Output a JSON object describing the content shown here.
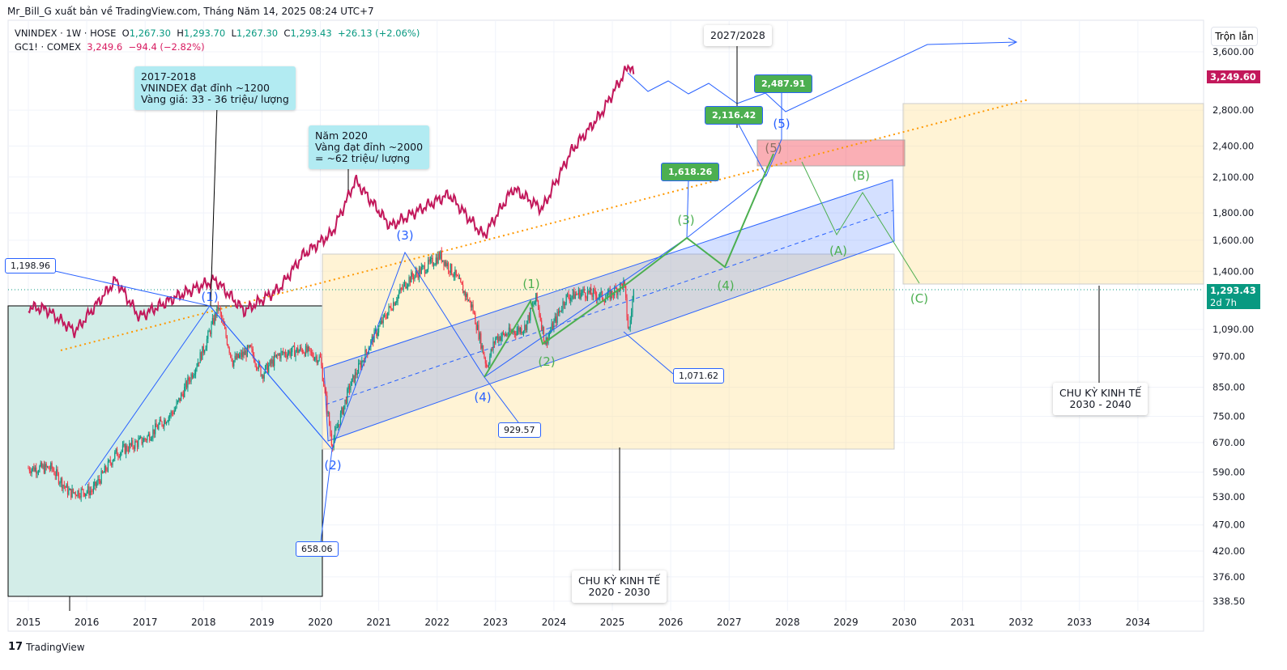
{
  "header": {
    "credit": "Mr_Bill_G xuất bản về TradingView.com, Tháng Năm 14, 2025 08:24 UTC+7"
  },
  "legend": {
    "symbol": "VNINDEX · 1W · HOSE",
    "o_label": "O",
    "o": "1,267.30",
    "h_label": "H",
    "h": "1,293.70",
    "l_label": "L",
    "l": "1,267.30",
    "c_label": "C",
    "c": "1,293.43",
    "change": "+26.13 (+2.06%)",
    "symbol2": "GC1! · COMEX",
    "price2": "3,249.6",
    "change2": "−94.4 (−2.82%)"
  },
  "scale_mode": "Trộn lẫn",
  "price_tags": {
    "gold": "3,249.60",
    "current": "1,293.43",
    "countdown": "2d 7h"
  },
  "notes": {
    "n2018": "2017-2018\nVNINDEX đạt đỉnh ~1200\nVàng giá: 33 - 36 triệu/ lượng",
    "n2020": "Năm 2020\nVàng đạt đỉnh ~2000\n= ~62 triệu/ lượng",
    "c2027": "2027/2028",
    "cycle1": "CHU KỲ KINH TẾ\n2020 - 2030",
    "cycle2": "CHU KỲ KINH TẾ\n2030 - 2040"
  },
  "price_labels": {
    "p1": "1,198.96",
    "p2": "658.06",
    "p3": "929.57",
    "p4": "1,071.62",
    "g1": "1,618.26",
    "g2": "2,116.42",
    "g3": "2,487.91"
  },
  "waves": {
    "b1": "(1)",
    "b2": "(2)",
    "b3": "(3)",
    "b4": "(4)",
    "b5": "(5)",
    "g1": "(1)",
    "g2": "(2)",
    "g3": "(3)",
    "g4": "(4)",
    "r5": "(5)",
    "A": "(A)",
    "B": "(B)",
    "C": "(C)"
  },
  "brand": "TradingView",
  "colors": {
    "up": "#089981",
    "down": "#f23645",
    "gold": "#c2185b",
    "blue": "#2962ff",
    "green": "#4caf50"
  },
  "chart_data": {
    "type": "candlestick+line",
    "x_ticks": [
      "2015",
      "2016",
      "2017",
      "2018",
      "2019",
      "2020",
      "2021",
      "2022",
      "2023",
      "2024",
      "2025",
      "2026",
      "2027",
      "2028",
      "2029",
      "2030",
      "2031",
      "2032",
      "2033",
      "2034"
    ],
    "y_ticks": [
      "3,600.00",
      "2,800.00",
      "2,400.00",
      "2,100.00",
      "1,800.00",
      "1,600.00",
      "1,400.00",
      "1,090.00",
      "970.00",
      "850.00",
      "750.00",
      "670.00",
      "590.00",
      "530.00",
      "470.00",
      "420.00",
      "376.00",
      "338.50"
    ],
    "y_scale": "log",
    "series": [
      {
        "name": "VNINDEX",
        "points": [
          [
            2015.0,
            600
          ],
          [
            2015.4,
            600
          ],
          [
            2015.7,
            540
          ],
          [
            2016.1,
            545
          ],
          [
            2016.5,
            640
          ],
          [
            2017.0,
            680
          ],
          [
            2017.5,
            770
          ],
          [
            2018.0,
            1000
          ],
          [
            2018.25,
            1200
          ],
          [
            2018.5,
            950
          ],
          [
            2018.8,
            1000
          ],
          [
            2019.0,
            900
          ],
          [
            2019.3,
            980
          ],
          [
            2019.7,
            1000
          ],
          [
            2020.0,
            960
          ],
          [
            2020.2,
            665
          ],
          [
            2020.5,
            850
          ],
          [
            2020.9,
            1050
          ],
          [
            2021.2,
            1200
          ],
          [
            2021.5,
            1350
          ],
          [
            2021.9,
            1450
          ],
          [
            2022.05,
            1500
          ],
          [
            2022.3,
            1380
          ],
          [
            2022.6,
            1200
          ],
          [
            2022.85,
            930
          ],
          [
            2023.0,
            1050
          ],
          [
            2023.5,
            1100
          ],
          [
            2023.7,
            1250
          ],
          [
            2023.85,
            1030
          ],
          [
            2024.2,
            1250
          ],
          [
            2024.5,
            1280
          ],
          [
            2024.9,
            1250
          ],
          [
            2025.2,
            1330
          ],
          [
            2025.28,
            1071
          ],
          [
            2025.37,
            1293
          ]
        ]
      },
      {
        "name": "GC1!",
        "points": [
          [
            2015.0,
            1200
          ],
          [
            2015.3,
            1190
          ],
          [
            2015.8,
            1080
          ],
          [
            2016.5,
            1350
          ],
          [
            2016.9,
            1150
          ],
          [
            2017.5,
            1250
          ],
          [
            2018.2,
            1350
          ],
          [
            2018.7,
            1180
          ],
          [
            2019.3,
            1300
          ],
          [
            2019.7,
            1500
          ],
          [
            2020.2,
            1650
          ],
          [
            2020.6,
            2070
          ],
          [
            2021.2,
            1700
          ],
          [
            2021.6,
            1800
          ],
          [
            2022.2,
            1950
          ],
          [
            2022.8,
            1630
          ],
          [
            2023.3,
            2000
          ],
          [
            2023.8,
            1830
          ],
          [
            2024.3,
            2350
          ],
          [
            2024.8,
            2750
          ],
          [
            2025.3,
            3420
          ],
          [
            2025.37,
            3249
          ]
        ]
      }
    ]
  }
}
